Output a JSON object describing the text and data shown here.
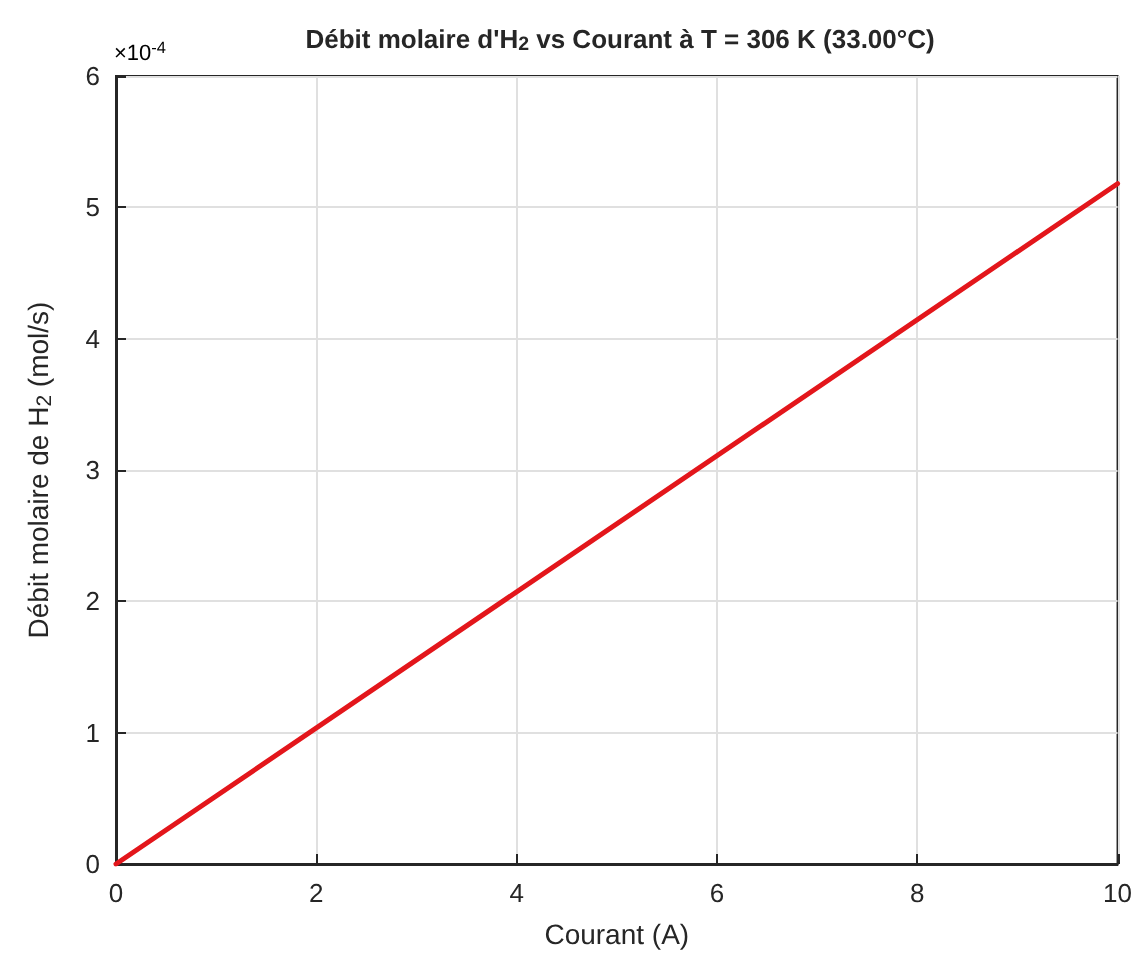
{
  "chart_data": {
    "type": "line",
    "title": "Débit molaire d'H$_{2}$ vs Courant à T = 306 K (33.00°C)",
    "xlabel": "Courant (A)",
    "ylabel": "Débit molaire de H$_{2}$ (mol/s)",
    "annotations": [
      "×10$^{-4}$"
    ],
    "x": [
      0,
      10
    ],
    "series": [
      {
        "color": "#e3161b",
        "values": [
          0,
          5.18
        ]
      }
    ],
    "xlim": [
      0,
      10
    ],
    "xticks": [
      0,
      2,
      4,
      6,
      8,
      10
    ],
    "ylim": [
      0,
      6
    ],
    "yticks": [
      0,
      1,
      2,
      3,
      4,
      5,
      6
    ],
    "grid": true,
    "marker": "none",
    "line_style": "solid"
  }
}
